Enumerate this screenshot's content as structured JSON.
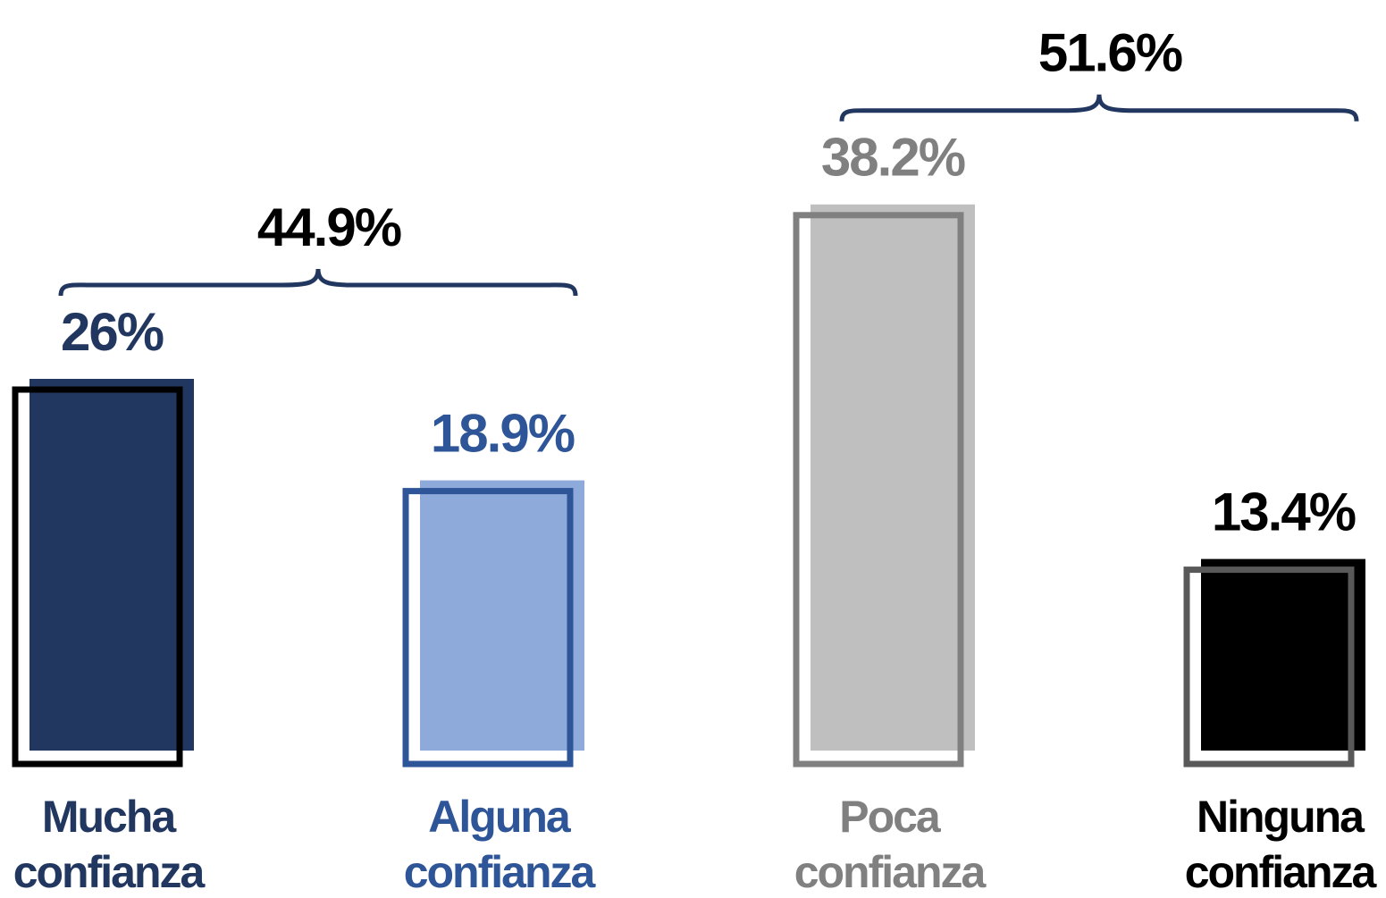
{
  "chart_data": {
    "type": "bar",
    "categories": [
      "Mucha confianza",
      "Alguna confianza",
      "Poca confianza",
      "Ninguna confianza"
    ],
    "values": [
      26,
      18.9,
      38.2,
      13.4
    ],
    "value_labels": [
      "26%",
      "18.9%",
      "38.2%",
      "13.4%"
    ],
    "colors": [
      "#22375f",
      "#8eaadb",
      "#bfbfbf",
      "#000000"
    ],
    "outline_colors": [
      "#000000",
      "#2e5597",
      "#808080",
      "#595959"
    ],
    "label_colors": [
      "#22375f",
      "#2e5597",
      "#808080",
      "#000000"
    ],
    "ylim": [
      0,
      40
    ],
    "brackets": [
      {
        "value": 44.9,
        "label": "44.9%",
        "span": [
          0,
          1
        ]
      },
      {
        "value": 51.6,
        "label": "51.6%",
        "span": [
          2,
          3
        ]
      }
    ],
    "bracket_color": "#22375f"
  }
}
